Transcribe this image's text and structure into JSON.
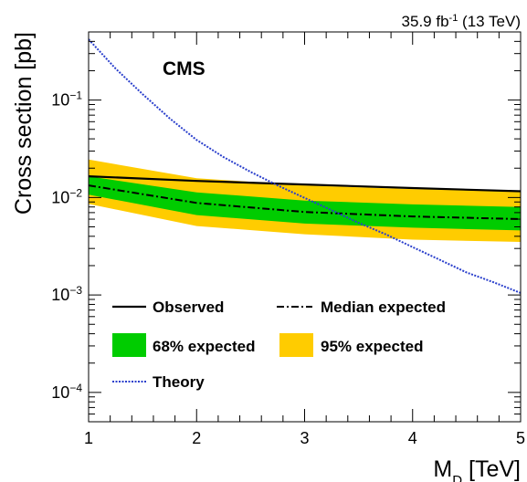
{
  "chart_data": {
    "type": "line",
    "lumi_label": "35.9 fb",
    "lumi_sup": "-1",
    "lumi_energy": " (13 TeV)",
    "experiment": "CMS",
    "xlabel_main": "M",
    "xlabel_sub": "D",
    "xlabel_unit": " [TeV]",
    "ylabel": "Cross section [pb]",
    "x_scale": "linear",
    "y_scale": "log",
    "xlim": [
      1,
      5
    ],
    "ylim": [
      5e-05,
      0.5
    ],
    "x_ticks": [
      {
        "value": 1,
        "label": "1"
      },
      {
        "value": 2,
        "label": "2"
      },
      {
        "value": 3,
        "label": "3"
      },
      {
        "value": 4,
        "label": "4"
      },
      {
        "value": 5,
        "label": "5"
      }
    ],
    "y_ticks": [
      {
        "value": 0.1,
        "base": "10",
        "exp": "−1"
      },
      {
        "value": 0.01,
        "base": "10",
        "exp": "−2"
      },
      {
        "value": 0.001,
        "base": "10",
        "exp": "−3"
      },
      {
        "value": 0.0001,
        "base": "10",
        "exp": "−4"
      }
    ],
    "x": [
      1,
      2,
      3,
      4,
      5
    ],
    "observed": [
      0.0165,
      0.0148,
      0.0136,
      0.0125,
      0.0116
    ],
    "median_expected": [
      0.0133,
      0.0088,
      0.0071,
      0.0064,
      0.006
    ],
    "band68": {
      "low": [
        0.0107,
        0.0066,
        0.0054,
        0.0049,
        0.0046
      ],
      "high": [
        0.0165,
        0.0113,
        0.0093,
        0.0085,
        0.008
      ]
    },
    "band95": {
      "low": [
        0.0086,
        0.0051,
        0.0042,
        0.0037,
        0.0035
      ],
      "high": [
        0.0245,
        0.0158,
        0.0133,
        0.0122,
        0.0117
      ]
    },
    "theory_x": [
      1,
      1.25,
      1.5,
      1.75,
      2,
      2.25,
      2.5,
      2.75,
      3,
      3.25,
      3.5,
      3.75,
      4,
      4.25,
      4.5,
      4.75,
      5
    ],
    "theory": [
      0.42,
      0.21,
      0.115,
      0.065,
      0.039,
      0.026,
      0.0183,
      0.0133,
      0.0099,
      0.0074,
      0.0055,
      0.0042,
      0.0031,
      0.0023,
      0.0017,
      0.00135,
      0.00105
    ],
    "legend": {
      "observed": "Observed",
      "median": "Median expected",
      "band68": "68% expected",
      "band95": "95% expected",
      "theory": "Theory"
    },
    "colors": {
      "observed": "#000000",
      "median": "#000000",
      "band68": "#00cc00",
      "band95": "#ffcc00",
      "theory": "#2a3fcc"
    }
  }
}
